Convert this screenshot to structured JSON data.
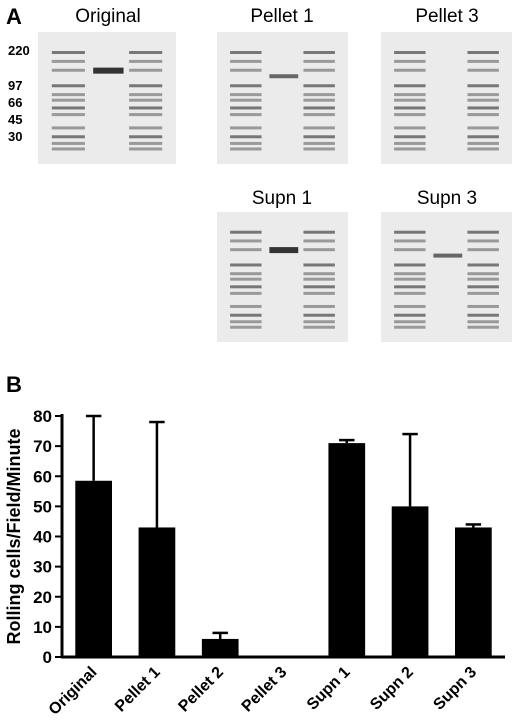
{
  "panel_a": {
    "letter": "A",
    "mw_markers": [
      "220",
      "97",
      "66",
      "45",
      "30"
    ],
    "gels": [
      {
        "title": "Original",
        "band": "strong"
      },
      {
        "title": "Pellet 1",
        "band": "medium"
      },
      {
        "title": "Pellet 3",
        "band": "none"
      },
      {
        "title": "Supn 1",
        "band": "strong"
      },
      {
        "title": "Supn 3",
        "band": "medium"
      }
    ]
  },
  "panel_b": {
    "letter": "B"
  },
  "chart_data": {
    "type": "bar",
    "categories": [
      "Original",
      "Pellet 1",
      "Pellet 2",
      "Pellet 3",
      "Supn 1",
      "Supn 2",
      "Supn 3"
    ],
    "values": [
      58.5,
      43,
      6,
      0,
      71,
      50,
      43
    ],
    "error_upper": [
      80,
      78,
      8,
      0,
      72,
      74,
      44
    ],
    "ylabel": "Rolling cells/Field/Minute",
    "xlabel": "",
    "ylim": [
      0,
      80
    ],
    "yticks": [
      0,
      10,
      20,
      30,
      40,
      50,
      60,
      70,
      80
    ],
    "bar_color": "#000000"
  }
}
